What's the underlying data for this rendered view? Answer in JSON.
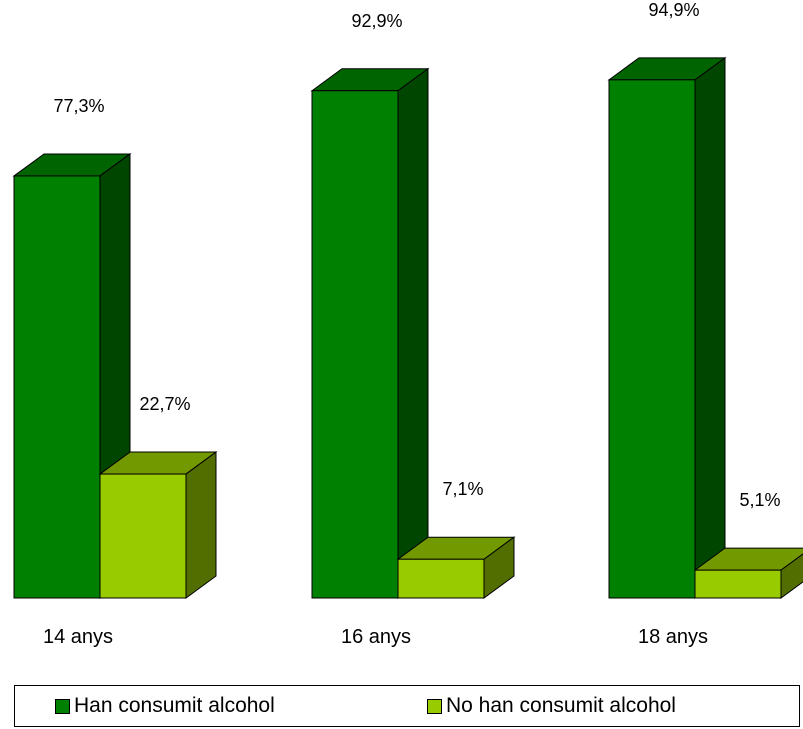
{
  "chart_data": {
    "type": "bar",
    "categories": [
      "14 anys",
      "16 anys",
      "18 anys"
    ],
    "series": [
      {
        "name": "Han consumit alcohol",
        "values": [
          77.3,
          92.9,
          94.9
        ],
        "labels": [
          "77,3%",
          "92,9%",
          "94,9%"
        ],
        "colors": {
          "front": "#008000",
          "top": "#006400",
          "side": "#004500"
        }
      },
      {
        "name": "No han consumit alcohol",
        "values": [
          22.7,
          7.1,
          5.1
        ],
        "labels": [
          "22,7%",
          "7,1%",
          "5,1%"
        ],
        "colors": {
          "front": "#99CC00",
          "top": "#739900",
          "side": "#536e00"
        }
      }
    ],
    "ylim": [
      0,
      100
    ],
    "style": "3d-column",
    "legend_position": "bottom"
  },
  "legend": {
    "items": [
      "Han consumit alcohol",
      "No han consumit alcohol"
    ]
  }
}
